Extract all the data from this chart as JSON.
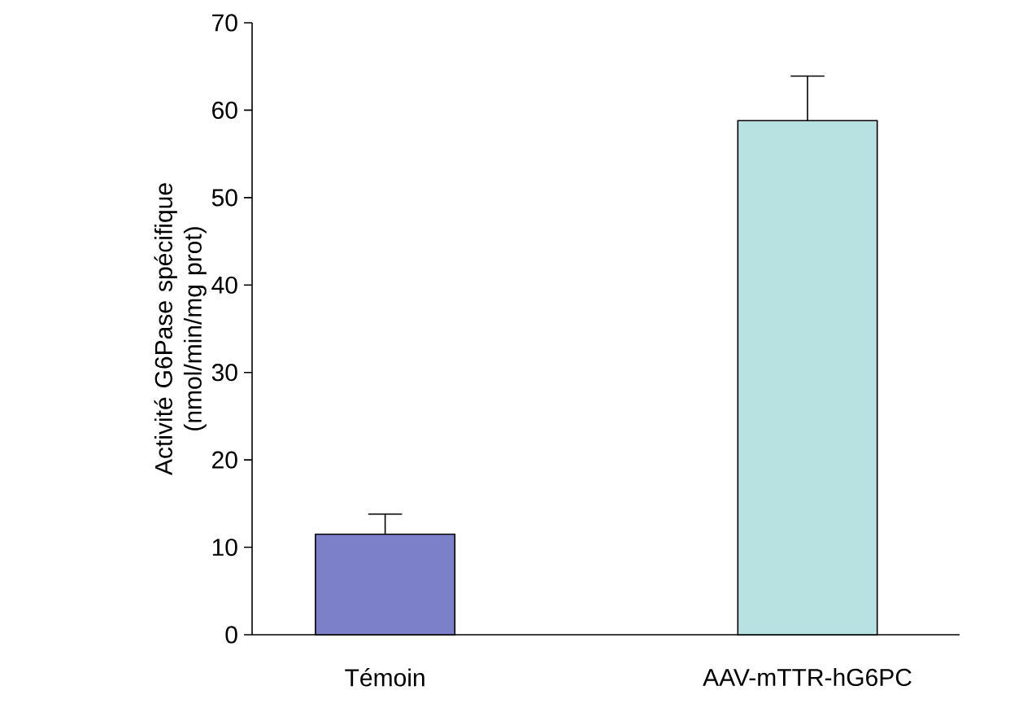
{
  "chart_data": {
    "type": "bar",
    "categories": [
      "Témoin",
      "AAV-mTTR-hG6PC"
    ],
    "values": [
      11.5,
      58.8
    ],
    "errors": [
      [
        11.5,
        13.8
      ],
      [
        58.8,
        63.9
      ]
    ],
    "colors": [
      "#7c80c8",
      "#b8e2e2"
    ],
    "ylabel": "Activité G6Pase spécifique (nmol/min/mg prot)",
    "ylim": [
      0,
      70
    ],
    "yticks": [
      0,
      10,
      20,
      30,
      40,
      50,
      60,
      70
    ]
  }
}
